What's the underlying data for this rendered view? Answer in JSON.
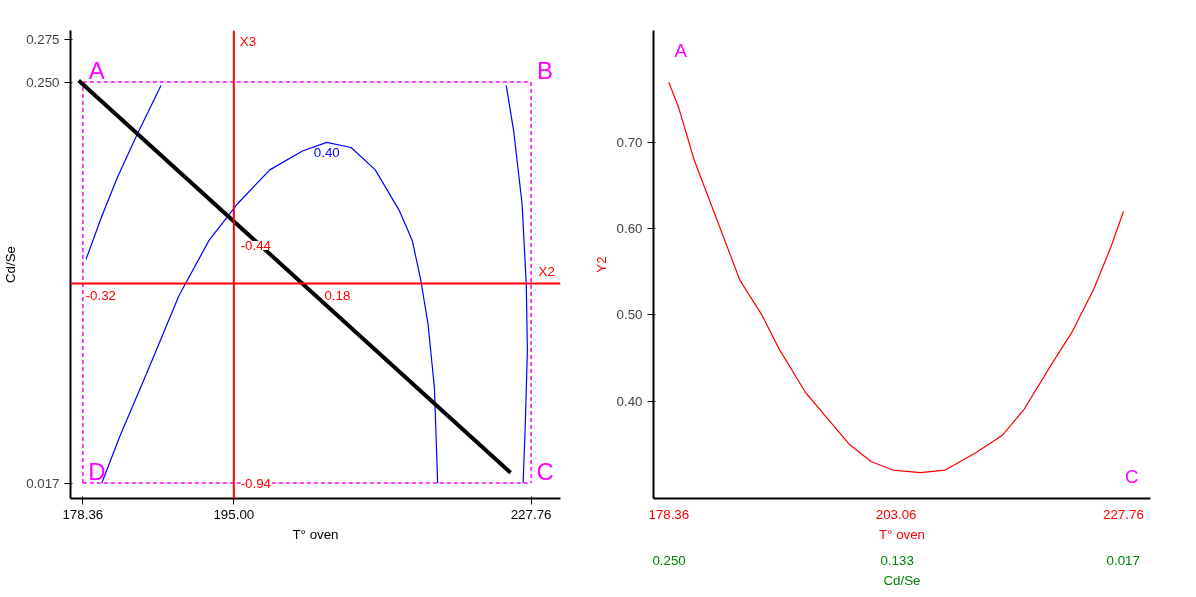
{
  "chart_data": [
    {
      "type": "line",
      "xlabel": "T° oven",
      "ylabel": "Cd/Se",
      "grid": false,
      "xlim": [
        177,
        231
      ],
      "ylim": [
        0.008,
        0.28
      ],
      "xticks": [
        178.36,
        {
          "value": 195,
          "label": "195.00"
        },
        227.76
      ],
      "yticks": [
        0.017,
        {
          "value": 0.25,
          "label": "0.250"
        },
        0.275
      ],
      "series": [
        {
          "color": "#0000ff",
          "x": [
            178.71,
            180.45,
            182.2,
            184.29,
            186.97
          ],
          "values": [
            0.147,
            0.172,
            0.195,
            0.219,
            0.248
          ]
        },
        {
          "color": "#0000ff",
          "x": [
            180.45,
            182.43,
            185.57,
            188.96,
            192.27,
            195.35,
            198.96,
            202.56,
            205.24,
            207.92,
            210.59,
            213.27,
            214.66,
            215.6,
            216.41,
            217.11,
            217.46
          ],
          "values": [
            0.017,
            0.044,
            0.083,
            0.126,
            0.158,
            0.179,
            0.199,
            0.21,
            0.215,
            0.212,
            0.199,
            0.175,
            0.158,
            0.135,
            0.109,
            0.072,
            0.017
          ]
        },
        {
          "color": "#0000ff",
          "x": [
            225.02,
            225.83,
            226.77,
            227.23,
            227.35,
            227.12,
            226.88
          ],
          "values": [
            0.248,
            0.222,
            0.179,
            0.132,
            0.094,
            0.051,
            0.017
          ]
        },
        {
          "color": "#ff00ff",
          "line_style": "dashed",
          "x": [
            178.36,
            227.76
          ],
          "values": [
            0.25,
            0.25
          ]
        },
        {
          "color": "#ff00ff",
          "line_style": "dashed",
          "x": [
            227.76,
            227.76
          ],
          "values": [
            0.25,
            0.017
          ]
        },
        {
          "color": "#ff00ff",
          "line_style": "dashed",
          "x": [
            178.36,
            227.76
          ],
          "values": [
            0.017,
            0.017
          ]
        },
        {
          "color": "#ff00ff",
          "line_style": "dashed",
          "x": [
            178.36,
            178.36
          ],
          "values": [
            0.017,
            0.25
          ]
        },
        {
          "color": "#000000",
          "x": [
            177.9,
            225.5
          ],
          "values": [
            0.251,
            0.023
          ]
        }
      ],
      "ref_lines": [
        {
          "axis": "y",
          "value": 0.133,
          "label": "X2",
          "color": "#ff0000"
        },
        {
          "axis": "x",
          "value": 195,
          "label": "X3",
          "color": "#ff0000"
        }
      ],
      "annotations": [
        {
          "text": "A",
          "x": 178.36,
          "y": 0.25
        },
        {
          "text": "B",
          "x": 227.76,
          "y": 0.25
        },
        {
          "text": "C",
          "x": 227.76,
          "y": 0.017
        },
        {
          "text": "D",
          "x": 178.36,
          "y": 0.017
        },
        {
          "text": "0.40",
          "x": 205.24,
          "y": 0.215
        },
        {
          "text": "-0.32",
          "x": 178.36,
          "y": 0.133
        },
        {
          "text": "0.18",
          "x": 204.43,
          "y": 0.133
        },
        {
          "text": "-0.44",
          "x": 195,
          "y": 0.155
        },
        {
          "text": "-0.94",
          "x": 195,
          "y": 0.017
        }
      ]
    },
    {
      "type": "line",
      "xlabel": "T° oven",
      "ylabel": "Y2",
      "x2label": "Cd/Se",
      "grid": false,
      "xlim": [
        176.7,
        230.7
      ],
      "ylim": [
        0.287,
        0.83
      ],
      "x2lim": [
        0.258,
        0.003
      ],
      "xticks": [
        178.36,
        203.06,
        227.76
      ],
      "x2ticks": [
        {
          "value": 0.25,
          "label": "0.250"
        },
        0.133,
        0.017
      ],
      "yticks": [
        {
          "value": 0.4,
          "label": "0.40"
        },
        {
          "value": 0.5,
          "label": "0.50"
        },
        {
          "value": 0.6,
          "label": "0.60"
        },
        {
          "value": 0.7,
          "label": "0.70"
        }
      ],
      "series": [
        {
          "color": "#ff0000",
          "x": [
            178.36,
            179.45,
            181.11,
            183.25,
            186.1,
            188.47,
            190.37,
            193.22,
            195.59,
            197.96,
            200.33,
            202.71,
            205.7,
            208.4,
            211.72,
            214.57,
            216.94,
            219.79,
            222.17,
            224.54,
            226.44,
            227.76
          ],
          "values": [
            0.77,
            0.74,
            0.68,
            0.62,
            0.54,
            0.5,
            0.46,
            0.41,
            0.38,
            0.35,
            0.33,
            0.32,
            0.317,
            0.32,
            0.34,
            0.36,
            0.39,
            0.44,
            0.48,
            0.53,
            0.58,
            0.62
          ]
        }
      ],
      "annotations": [
        {
          "text": "A",
          "x": 178.36,
          "y": 0.77
        },
        "C"
      ]
    }
  ]
}
